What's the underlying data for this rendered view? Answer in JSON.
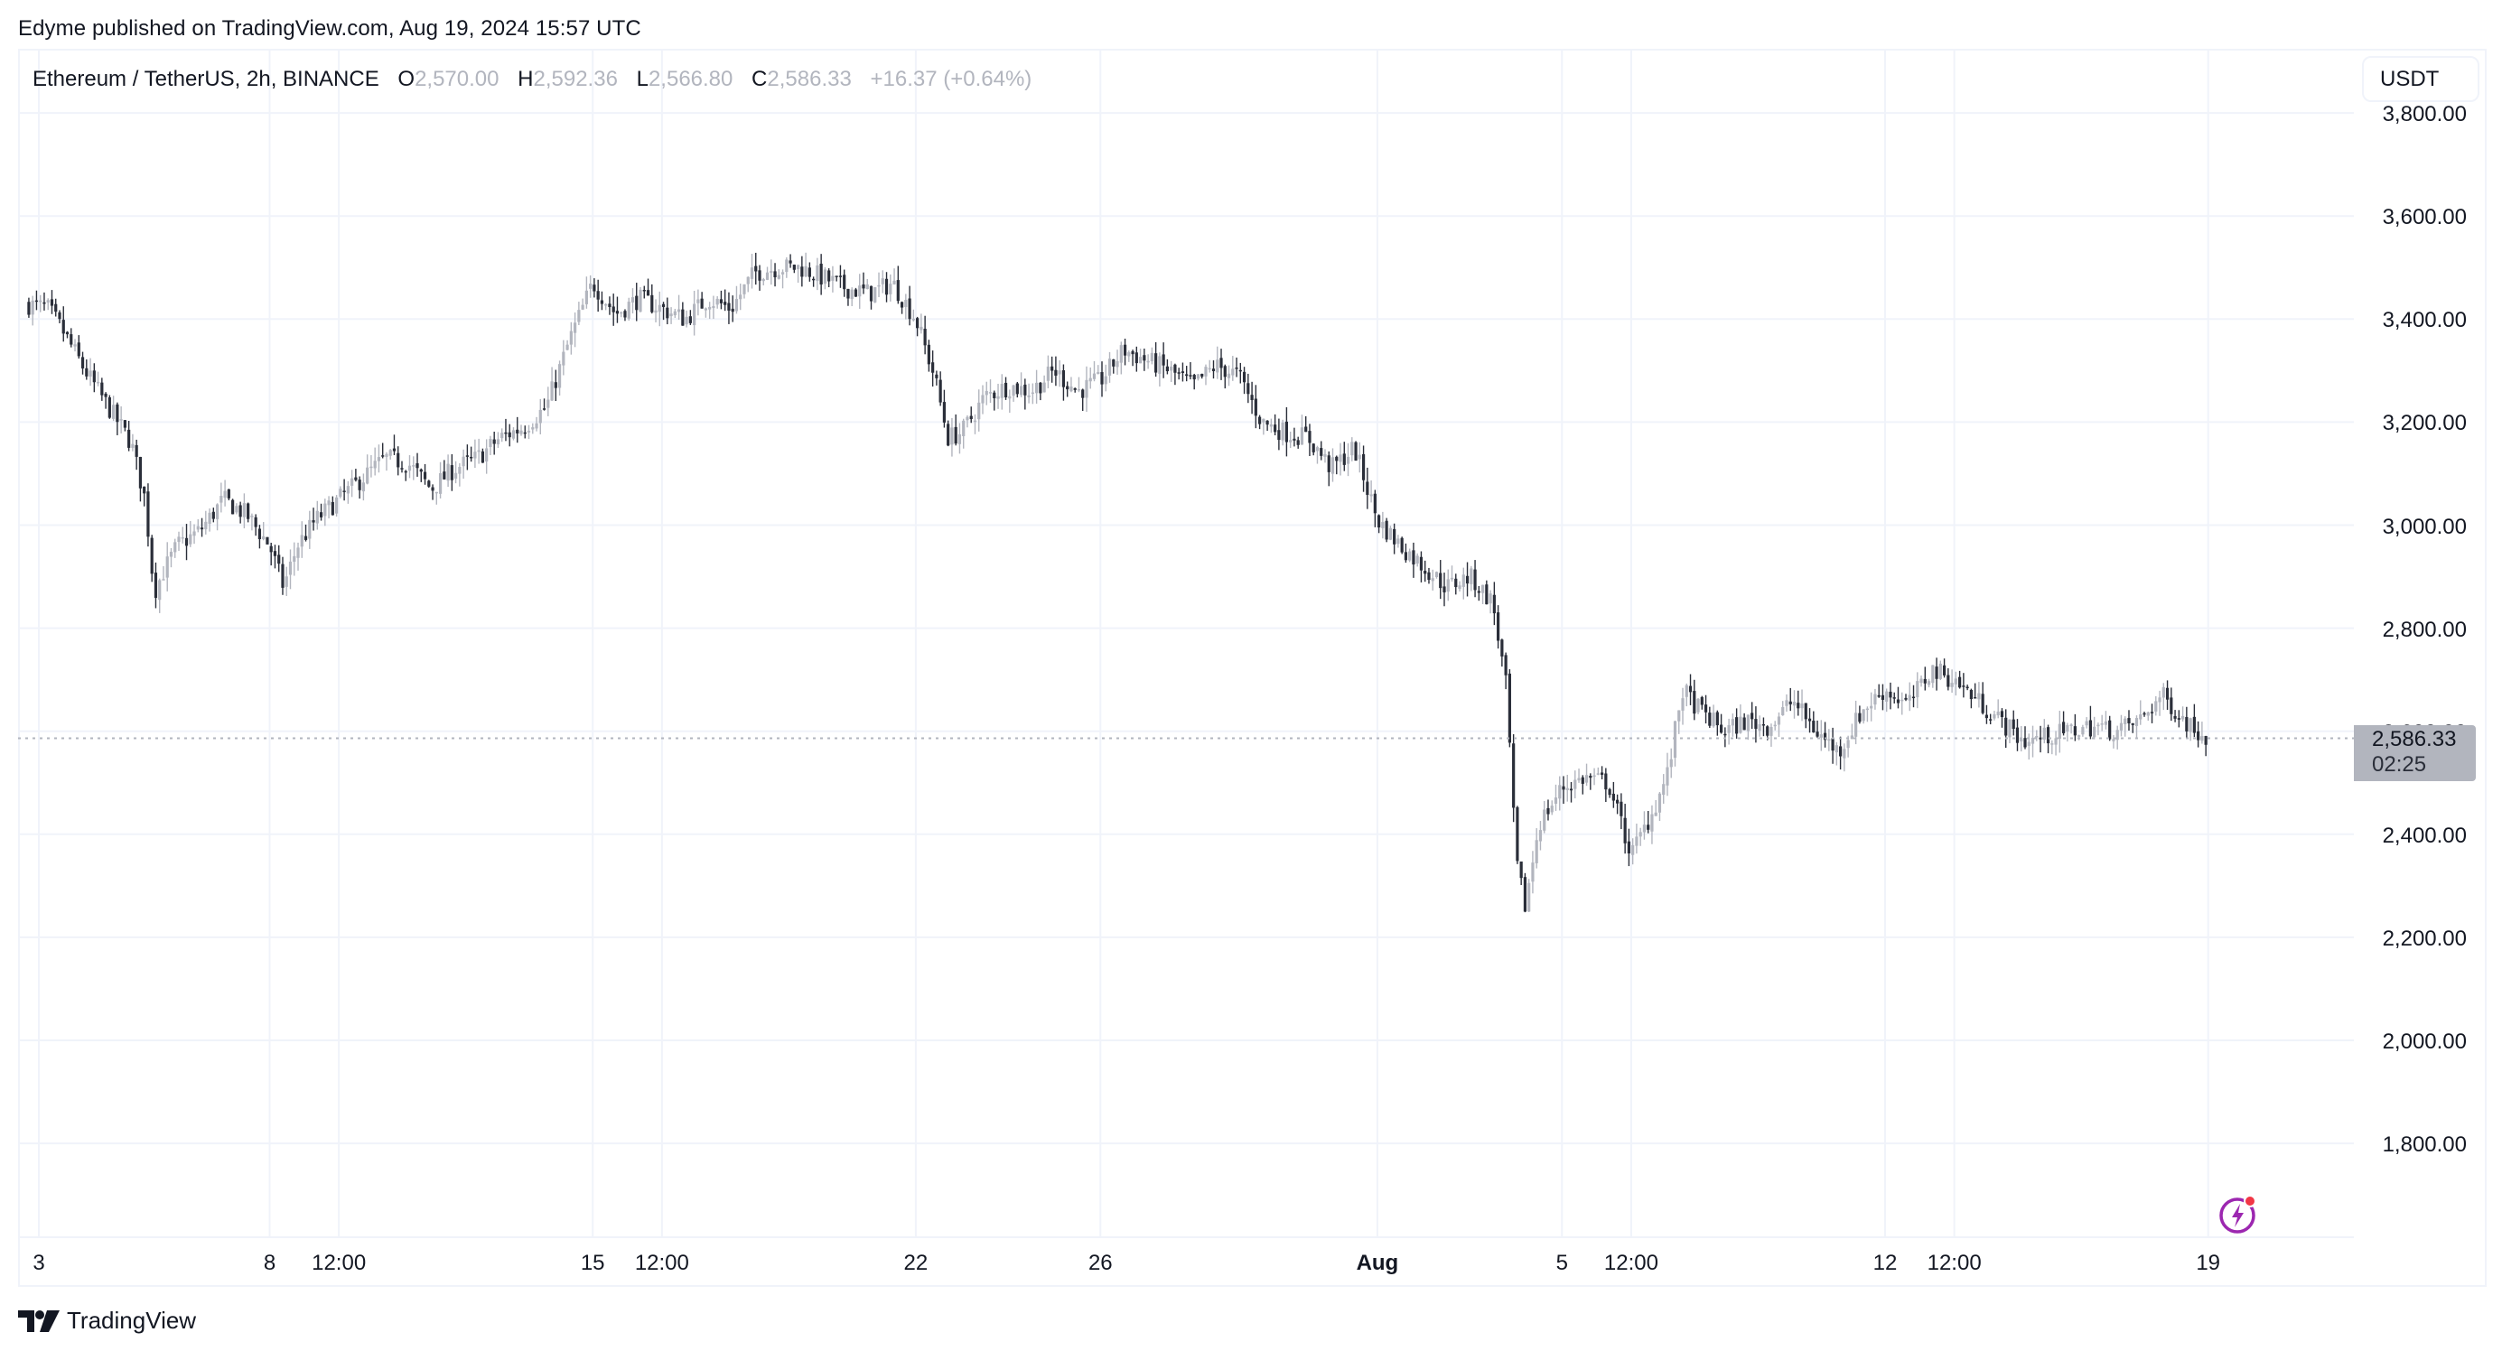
{
  "header": {
    "published_line": "Edyme published on TradingView.com, Aug 19, 2024 15:57 UTC"
  },
  "legend": {
    "symbol": "Ethereum / TetherUS, 2h, BINANCE",
    "open_label": "O",
    "open": "2,570.00",
    "high_label": "H",
    "high": "2,592.36",
    "low_label": "L",
    "low": "2,566.80",
    "close_label": "C",
    "close": "2,586.33",
    "change": "+16.37 (+0.64%)"
  },
  "currency_button": "USDT",
  "last_price": {
    "price": "2,586.33",
    "countdown": "02:25"
  },
  "price_axis": {
    "labels": [
      "3,800.00",
      "3,600.00",
      "3,400.00",
      "3,200.00",
      "3,000.00",
      "2,800.00",
      "2,600.00",
      "2,400.00",
      "2,200.00",
      "2,000.00",
      "1,800.00"
    ]
  },
  "time_axis": {
    "labels": [
      {
        "text": "3",
        "bold": false
      },
      {
        "text": "8",
        "bold": false
      },
      {
        "text": "12:00",
        "bold": false
      },
      {
        "text": "15",
        "bold": false
      },
      {
        "text": "12:00",
        "bold": false
      },
      {
        "text": "22",
        "bold": false
      },
      {
        "text": "26",
        "bold": false
      },
      {
        "text": "Aug",
        "bold": true
      },
      {
        "text": "5",
        "bold": false
      },
      {
        "text": "12:00",
        "bold": false
      },
      {
        "text": "12",
        "bold": false
      },
      {
        "text": "12:00",
        "bold": false
      },
      {
        "text": "19",
        "bold": false
      }
    ]
  },
  "footer": {
    "brand": "TradingView"
  },
  "colors": {
    "up": "#b2b5be",
    "down": "#2a2e39",
    "grid": "#f0f3fa",
    "last_line": "#b2b5be",
    "flash": "#9c27b0",
    "flash_dot": "#f23645"
  },
  "chart_data": {
    "type": "candlestick",
    "title": "Ethereum / TetherUS, 2h, BINANCE",
    "xlabel": "",
    "ylabel": "USDT",
    "ylim": [
      1650,
      3850
    ],
    "grid": true,
    "interval": "2h",
    "x_ticks": [
      "3",
      "8",
      "12:00",
      "15",
      "12:00",
      "22",
      "26",
      "Aug",
      "5",
      "12:00",
      "12",
      "12:00",
      "19"
    ],
    "y_ticks": [
      1800,
      2000,
      2200,
      2400,
      2600,
      2800,
      3000,
      3200,
      3400,
      3600,
      3800
    ],
    "last": {
      "open": 2570.0,
      "high": 2592.36,
      "low": 2566.8,
      "close": 2586.33,
      "change": 16.37,
      "change_pct": 0.64
    },
    "path_note": "approximate close-price anchors read from chart, [day offset from Jul 3 00:00, price]",
    "anchors": [
      [
        -0.3,
        3430
      ],
      [
        0.2,
        3420
      ],
      [
        0.5,
        3380
      ],
      [
        1.0,
        3300
      ],
      [
        1.5,
        3230
      ],
      [
        2.0,
        3160
      ],
      [
        2.3,
        3050
      ],
      [
        2.5,
        2870
      ],
      [
        2.7,
        2910
      ],
      [
        3.0,
        2960
      ],
      [
        3.5,
        2990
      ],
      [
        4.0,
        3050
      ],
      [
        4.5,
        3020
      ],
      [
        5.0,
        2960
      ],
      [
        5.3,
        2880
      ],
      [
        5.6,
        2960
      ],
      [
        6.0,
        3010
      ],
      [
        6.5,
        3050
      ],
      [
        7.0,
        3090
      ],
      [
        7.5,
        3130
      ],
      [
        8.0,
        3120
      ],
      [
        8.5,
        3070
      ],
      [
        9.0,
        3110
      ],
      [
        9.5,
        3130
      ],
      [
        10.0,
        3170
      ],
      [
        10.5,
        3190
      ],
      [
        11.0,
        3230
      ],
      [
        11.5,
        3360
      ],
      [
        12.0,
        3470
      ],
      [
        12.5,
        3410
      ],
      [
        13.0,
        3440
      ],
      [
        13.5,
        3420
      ],
      [
        14.0,
        3400
      ],
      [
        14.5,
        3440
      ],
      [
        15.0,
        3420
      ],
      [
        15.5,
        3490
      ],
      [
        16.0,
        3500
      ],
      [
        16.5,
        3500
      ],
      [
        17.0,
        3480
      ],
      [
        17.5,
        3460
      ],
      [
        18.0,
        3450
      ],
      [
        18.5,
        3470
      ],
      [
        19.0,
        3400
      ],
      [
        19.4,
        3290
      ],
      [
        19.7,
        3170
      ],
      [
        20.0,
        3180
      ],
      [
        20.5,
        3250
      ],
      [
        21.0,
        3270
      ],
      [
        21.5,
        3260
      ],
      [
        22.0,
        3300
      ],
      [
        22.5,
        3260
      ],
      [
        23.0,
        3280
      ],
      [
        23.5,
        3340
      ],
      [
        24.0,
        3320
      ],
      [
        24.5,
        3300
      ],
      [
        25.0,
        3270
      ],
      [
        25.5,
        3310
      ],
      [
        26.0,
        3290
      ],
      [
        26.5,
        3200
      ],
      [
        27.0,
        3180
      ],
      [
        27.5,
        3170
      ],
      [
        28.0,
        3110
      ],
      [
        28.5,
        3150
      ],
      [
        29.0,
        3010
      ],
      [
        29.5,
        2960
      ],
      [
        30.0,
        2920
      ],
      [
        30.5,
        2880
      ],
      [
        31.0,
        2900
      ],
      [
        31.5,
        2850
      ],
      [
        31.8,
        2680
      ],
      [
        32.0,
        2350
      ],
      [
        32.2,
        2260
      ],
      [
        32.5,
        2420
      ],
      [
        33.0,
        2490
      ],
      [
        33.5,
        2510
      ],
      [
        34.0,
        2500
      ],
      [
        34.5,
        2360
      ],
      [
        35.0,
        2450
      ],
      [
        35.3,
        2520
      ],
      [
        35.6,
        2680
      ],
      [
        36.0,
        2640
      ],
      [
        36.5,
        2600
      ],
      [
        37.0,
        2620
      ],
      [
        37.5,
        2610
      ],
      [
        38.0,
        2660
      ],
      [
        38.5,
        2600
      ],
      [
        39.0,
        2560
      ],
      [
        39.5,
        2640
      ],
      [
        40.0,
        2680
      ],
      [
        40.5,
        2650
      ],
      [
        41.0,
        2720
      ],
      [
        41.5,
        2700
      ],
      [
        42.0,
        2660
      ],
      [
        42.5,
        2620
      ],
      [
        43.0,
        2580
      ],
      [
        43.5,
        2590
      ],
      [
        44.0,
        2600
      ],
      [
        44.5,
        2610
      ],
      [
        45.0,
        2600
      ],
      [
        45.5,
        2620
      ],
      [
        46.0,
        2670
      ],
      [
        46.5,
        2620
      ],
      [
        47.0,
        2586
      ]
    ]
  }
}
